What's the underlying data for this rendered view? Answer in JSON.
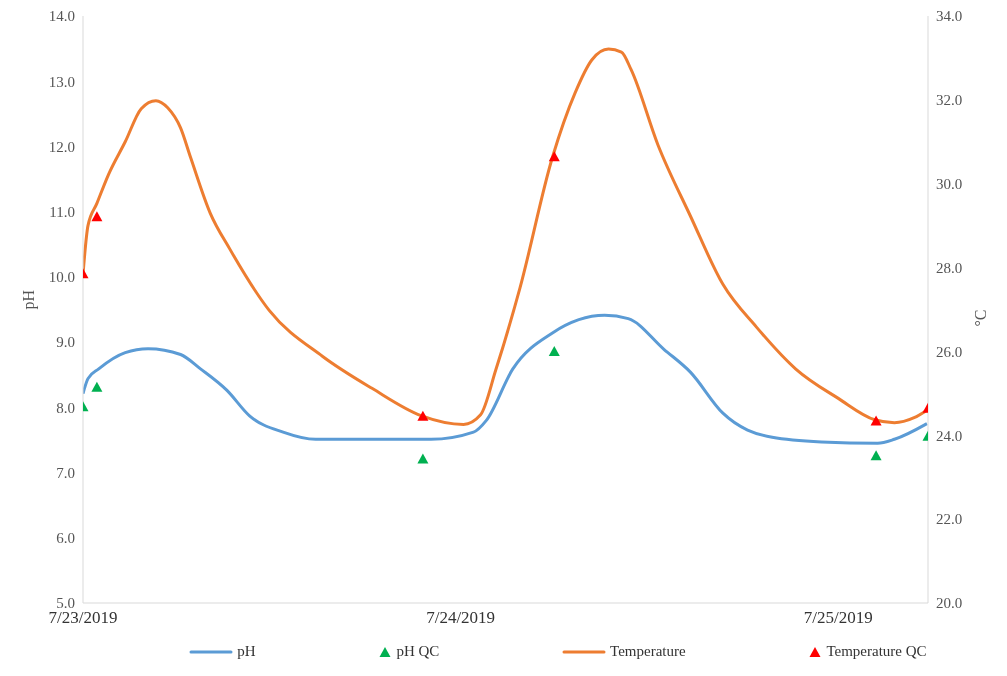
{
  "chart_data": {
    "type": "line",
    "ylabel": "pH",
    "y2label": "°C",
    "xlim": [
      "2019-07-23T00:00",
      "2019-07-25T05:42"
    ],
    "xticks": [
      {
        "value": "2019-07-23T00:00",
        "label": "7/23/2019"
      },
      {
        "value": "2019-07-24T00:00",
        "label": "7/24/2019"
      },
      {
        "value": "2019-07-25T00:00",
        "label": "7/25/2019"
      }
    ],
    "ylim": [
      5,
      14
    ],
    "yticks": [
      {
        "value": 5,
        "label": "5.0"
      },
      {
        "value": 6,
        "label": "6.0"
      },
      {
        "value": 7,
        "label": "7.0"
      },
      {
        "value": 8,
        "label": "8.0"
      },
      {
        "value": 9,
        "label": "9.0"
      },
      {
        "value": 10,
        "label": "10.0"
      },
      {
        "value": 11,
        "label": "11.0"
      },
      {
        "value": 12,
        "label": "12.0"
      },
      {
        "value": 13,
        "label": "13.0"
      },
      {
        "value": 14,
        "label": "14.0"
      }
    ],
    "y2lim": [
      20,
      34
    ],
    "y2ticks": [
      {
        "value": 20,
        "label": "20.0"
      },
      {
        "value": 22,
        "label": "22.0"
      },
      {
        "value": 24,
        "label": "24.0"
      },
      {
        "value": 26,
        "label": "26.0"
      },
      {
        "value": 28,
        "label": "28.0"
      },
      {
        "value": 30,
        "label": "30.0"
      },
      {
        "value": 32,
        "label": "32.0"
      },
      {
        "value": 34,
        "label": "34.0"
      }
    ],
    "grid": false,
    "legend": "bottom",
    "line_style": "solid",
    "series": [
      {
        "name": "pH",
        "marker": "none",
        "color": "#5b9bd5",
        "x": [
          "2019-07-23T00:00",
          "2019-07-23T00:19",
          "2019-07-23T01:00",
          "2019-07-23T02:41",
          "2019-07-23T04:08",
          "2019-07-23T06:12",
          "2019-07-23T07:28",
          "2019-07-23T09:09",
          "2019-07-23T10:35",
          "2019-07-23T12:43",
          "2019-07-23T14:47",
          "2019-07-23T19:22",
          "2019-07-23T22:07",
          "2019-07-24T00:49",
          "2019-07-24T01:38",
          "2019-07-24T03:19",
          "2019-07-24T05:50",
          "2019-07-24T09:09",
          "2019-07-24T10:39",
          "2019-07-24T12:55",
          "2019-07-24T14:36",
          "2019-07-24T16:40",
          "2019-07-24T19:48",
          "2019-07-24T22:56",
          "2019-07-25T02:30",
          "2019-07-25T03:34",
          "2019-07-25T05:38"
        ],
        "values": [
          8.21,
          8.44,
          8.59,
          8.84,
          8.9,
          8.81,
          8.59,
          8.26,
          7.87,
          7.62,
          7.51,
          7.51,
          7.51,
          7.62,
          7.8,
          8.59,
          9.14,
          9.41,
          9.36,
          8.89,
          8.54,
          7.91,
          7.54,
          7.47,
          7.45,
          7.51,
          7.75
        ]
      },
      {
        "name": "pH QC",
        "type": "scatter",
        "marker": "triangle",
        "color": "#00b050",
        "x": [
          "2019-07-23T00:00",
          "2019-07-23T00:53",
          "2019-07-23T21:36",
          "2019-07-24T05:57",
          "2019-07-25T02:24",
          "2019-07-25T05:42"
        ],
        "values": [
          8.0,
          8.3,
          7.2,
          8.85,
          7.25,
          7.55
        ]
      },
      {
        "name": "Temperature",
        "marker": "none",
        "axis": "y2",
        "color": "#ed7d31",
        "x": [
          "2019-07-23T00:00",
          "2019-07-23T00:19",
          "2019-07-23T00:53",
          "2019-07-23T01:38",
          "2019-07-23T02:41",
          "2019-07-23T03:42",
          "2019-07-23T04:38",
          "2019-07-23T05:23",
          "2019-07-23T06:12",
          "2019-07-23T06:50",
          "2019-07-23T08:05",
          "2019-07-23T09:20",
          "2019-07-23T11:50",
          "2019-07-23T15:14",
          "2019-07-23T18:22",
          "2019-07-23T21:29",
          "2019-07-24T00:11",
          "2019-07-24T01:16",
          "2019-07-24T02:15",
          "2019-07-24T03:46",
          "2019-07-24T05:50",
          "2019-07-24T07:16",
          "2019-07-24T08:20",
          "2019-07-24T09:24",
          "2019-07-24T10:13",
          "2019-07-24T10:50",
          "2019-07-24T12:32",
          "2019-07-24T14:36",
          "2019-07-24T16:40",
          "2019-07-24T18:48",
          "2019-07-24T21:18",
          "2019-07-25T00:00",
          "2019-07-25T02:19",
          "2019-07-25T03:34",
          "2019-07-25T04:49",
          "2019-07-25T05:38"
        ],
        "values": [
          27.84,
          29.0,
          29.53,
          30.23,
          31.0,
          31.79,
          31.98,
          31.81,
          31.33,
          30.63,
          29.3,
          28.44,
          26.98,
          25.88,
          25.12,
          24.47,
          24.26,
          24.49,
          25.58,
          27.51,
          30.63,
          32.16,
          32.95,
          33.21,
          33.14,
          32.72,
          30.93,
          29.23,
          27.6,
          26.58,
          25.58,
          24.88,
          24.37,
          24.3,
          24.42,
          24.6
        ]
      },
      {
        "name": "Temperature QC",
        "type": "scatter",
        "marker": "triangle",
        "axis": "y2",
        "color": "#ff0000",
        "x": [
          "2019-07-23T00:00",
          "2019-07-23T00:53",
          "2019-07-23T21:36",
          "2019-07-24T05:57",
          "2019-07-25T02:24",
          "2019-07-25T05:42"
        ],
        "values": [
          27.84,
          29.2,
          24.44,
          30.63,
          24.33,
          24.63
        ]
      }
    ]
  }
}
